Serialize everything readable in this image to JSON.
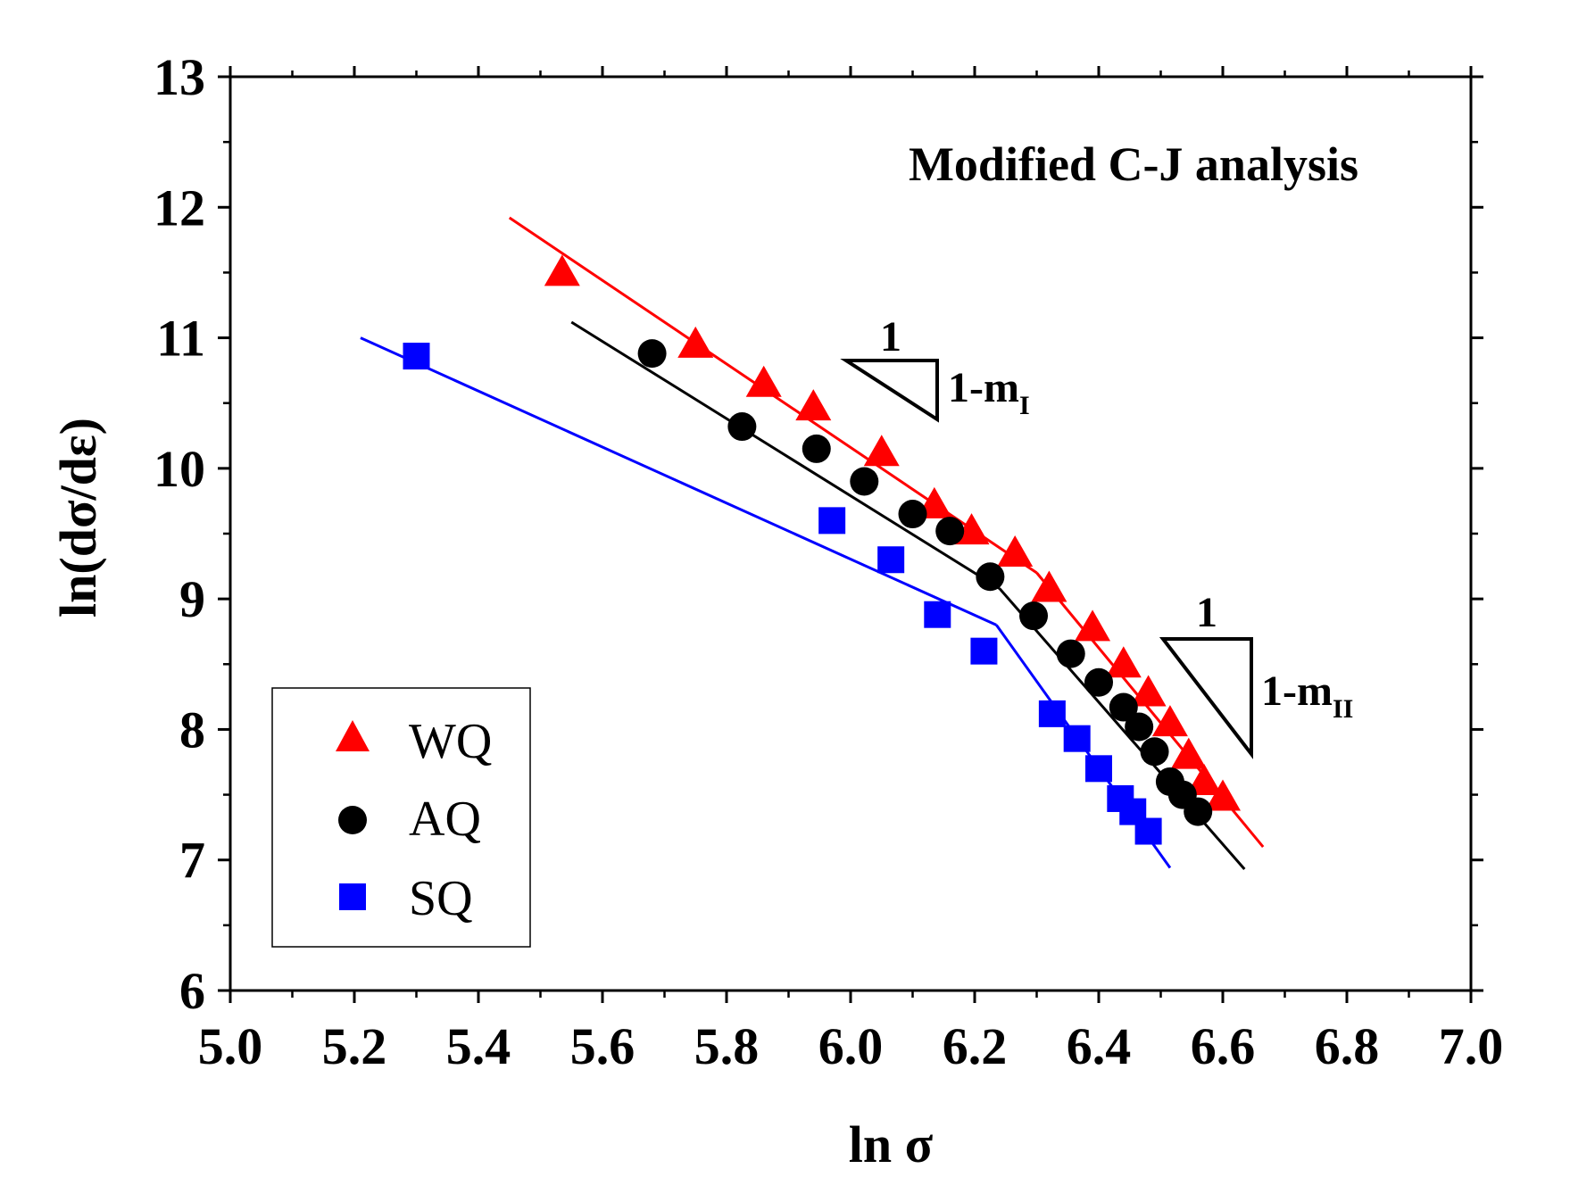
{
  "chart_data": {
    "type": "scatter",
    "title": "",
    "annotation": "Modified C-J analysis",
    "xlabel": "ln σ",
    "ylabel": "ln(dσ/dε)",
    "xlim": [
      5.0,
      7.0
    ],
    "ylim": [
      6,
      13
    ],
    "xticks": [
      "5.0",
      "5.2",
      "5.4",
      "5.6",
      "5.8",
      "6.0",
      "6.2",
      "6.4",
      "6.6",
      "6.8",
      "7.0"
    ],
    "yticks": [
      "6",
      "7",
      "8",
      "9",
      "10",
      "11",
      "12",
      "13"
    ],
    "legend_position": "bottom-left",
    "series": [
      {
        "name": "WQ",
        "marker": "triangle",
        "color": "#ff0000",
        "x": [
          5.535,
          5.75,
          5.86,
          5.94,
          6.05,
          6.135,
          6.195,
          6.265,
          6.32,
          6.39,
          6.44,
          6.48,
          6.515,
          6.545,
          6.57,
          6.6
        ],
        "y": [
          11.5,
          10.95,
          10.65,
          10.47,
          10.12,
          9.72,
          9.52,
          9.35,
          9.08,
          8.78,
          8.5,
          8.28,
          8.05,
          7.8,
          7.6,
          7.48
        ],
        "fit_segments": [
          {
            "x": [
              5.45,
              6.3
            ],
            "y": [
              11.92,
              9.2
            ]
          },
          {
            "x": [
              6.3,
              6.665
            ],
            "y": [
              9.2,
              7.1
            ]
          }
        ]
      },
      {
        "name": "AQ",
        "marker": "circle",
        "color": "#000000",
        "x": [
          5.68,
          5.825,
          5.945,
          6.022,
          6.1,
          6.16,
          6.225,
          6.295,
          6.355,
          6.4,
          6.44,
          6.465,
          6.49,
          6.515,
          6.535,
          6.56
        ],
        "y": [
          10.88,
          10.32,
          10.15,
          9.9,
          9.65,
          9.52,
          9.17,
          8.87,
          8.58,
          8.36,
          8.17,
          8.02,
          7.83,
          7.6,
          7.5,
          7.37
        ],
        "fit_segments": [
          {
            "x": [
              5.55,
              6.24
            ],
            "y": [
              11.12,
              9.08
            ]
          },
          {
            "x": [
              6.24,
              6.635
            ],
            "y": [
              9.08,
              6.93
            ]
          }
        ]
      },
      {
        "name": "SQ",
        "marker": "square",
        "color": "#0000ff",
        "x": [
          5.3,
          5.97,
          6.065,
          6.14,
          6.215,
          6.325,
          6.365,
          6.4,
          6.435,
          6.455,
          6.48
        ],
        "y": [
          10.86,
          9.6,
          9.3,
          8.88,
          8.6,
          8.12,
          7.93,
          7.7,
          7.47,
          7.37,
          7.22
        ],
        "fit_segments": [
          {
            "x": [
              5.21,
              6.235
            ],
            "y": [
              11.0,
              8.8
            ]
          },
          {
            "x": [
              6.235,
              6.515
            ],
            "y": [
              8.8,
              6.94
            ]
          }
        ]
      }
    ],
    "slope_indicators": [
      {
        "run_label": "1",
        "rise_label": "1-m",
        "rise_subscript": "I"
      },
      {
        "run_label": "1",
        "rise_label": "1-m",
        "rise_subscript": "II"
      }
    ]
  }
}
